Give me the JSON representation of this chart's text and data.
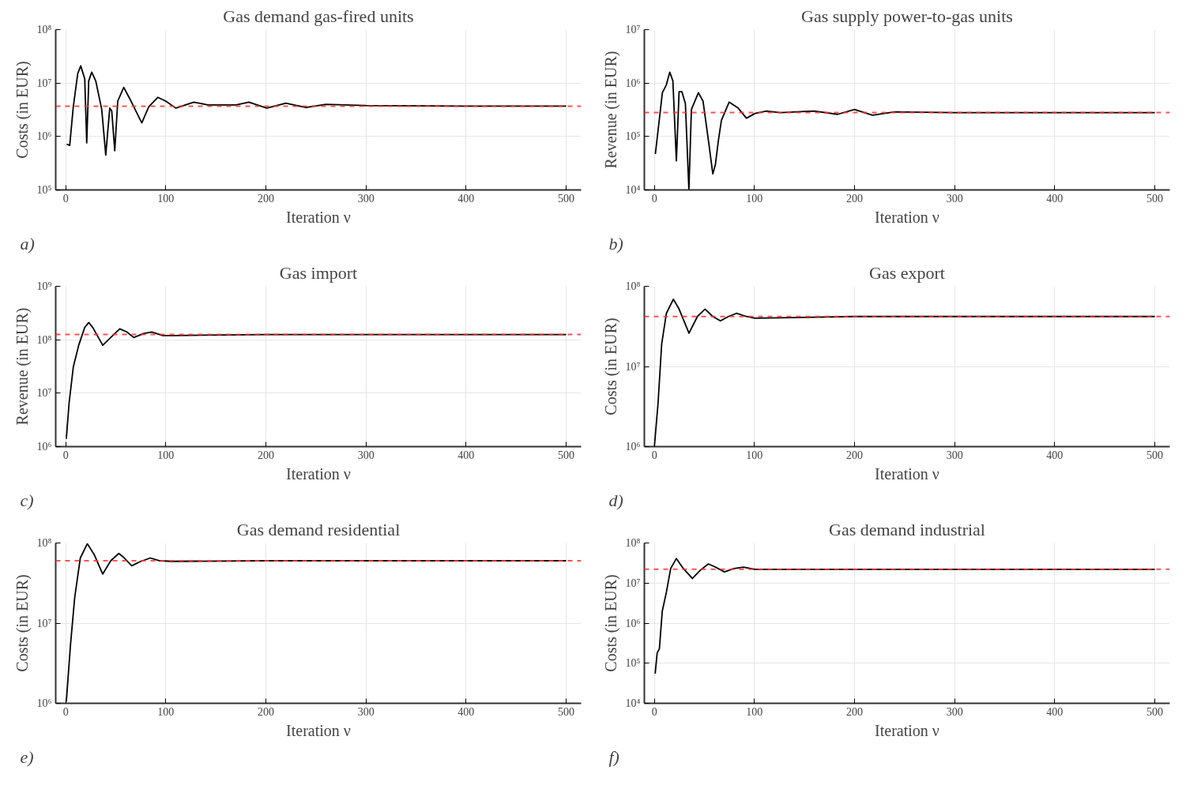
{
  "chart_data": [
    {
      "type": "line",
      "title": "Gas demand gas-fired units",
      "xlabel": "Iteration ν",
      "ylabel": "Costs (in EUR)",
      "annotations": [
        "a)"
      ],
      "log": "y",
      "grid": true,
      "marker": "none",
      "line_style": "solid",
      "color": "#000000",
      "x": [
        1,
        4,
        7.5,
        12,
        15,
        19,
        21,
        23,
        26,
        30,
        36,
        40,
        44,
        46,
        49,
        52,
        58,
        64,
        76,
        83,
        92,
        100,
        110,
        128,
        142,
        170,
        183,
        201,
        220,
        240,
        260,
        300,
        400,
        500
      ],
      "values": [
        720000.0,
        680000.0,
        3500000.0,
        15000000.0,
        21000000.0,
        12000000.0,
        760000.0,
        11000000.0,
        16000000.0,
        11000000.0,
        3200000.0,
        450000.0,
        3400000.0,
        3000000.0,
        540000.0,
        4600000.0,
        8300000.0,
        5100000.0,
        1800000.0,
        3600000.0,
        5400000.0,
        4600000.0,
        3400000.0,
        4400000.0,
        3900000.0,
        3900000.0,
        4400000.0,
        3400000.0,
        4200000.0,
        3500000.0,
        4000000.0,
        3800000.0,
        3700000.0,
        3700000.0
      ],
      "xlim": [
        -10,
        515
      ],
      "ylim": [
        100000.0,
        100000000.0
      ],
      "xticks": [
        0,
        100,
        200,
        300,
        400,
        500
      ],
      "yticks": [
        {
          "value": 100000.0,
          "label": "10⁵"
        },
        {
          "value": 1000000.0,
          "label": "10⁶"
        },
        {
          "value": 10000000.0,
          "label": "10⁷"
        },
        {
          "value": 100000000.0,
          "label": "10⁸"
        }
      ],
      "ref_lines": [
        {
          "axis": "y",
          "value": 3700000.0,
          "color": "#ff3333",
          "line_style": "dashed"
        }
      ]
    },
    {
      "type": "line",
      "title": "Gas supply power-to-gas units",
      "xlabel": "Iteration ν",
      "ylabel": "Revenue (in EUR)",
      "annotations": [
        "b)"
      ],
      "log": "y",
      "grid": true,
      "marker": "none",
      "line_style": "solid",
      "color": "#000000",
      "x": [
        1,
        8,
        12,
        15.4,
        18.5,
        22,
        24.7,
        27.5,
        31,
        34.5,
        37,
        44,
        48.6,
        54,
        58.4,
        61,
        64,
        67,
        74.7,
        83.7,
        92,
        100.6,
        112,
        126,
        160,
        183,
        200,
        218,
        240,
        300,
        400,
        500
      ],
      "values": [
        47000.0,
        660000.0,
        930000.0,
        1600000.0,
        1100000.0,
        35000.0,
        690000.0,
        690000.0,
        410000.0,
        10000.0,
        320000.0,
        660000.0,
        460000.0,
        85000.0,
        20000.0,
        30000.0,
        85000.0,
        200000.0,
        440000.0,
        340000.0,
        220000.0,
        270000.0,
        300000.0,
        280000.0,
        300000.0,
        260000.0,
        320000.0,
        250000.0,
        290000.0,
        280000.0,
        280000.0,
        280000.0
      ],
      "xlim": [
        -10,
        515
      ],
      "ylim": [
        10000.0,
        10000000.0
      ],
      "xticks": [
        0,
        100,
        200,
        300,
        400,
        500
      ],
      "yticks": [
        {
          "value": 10000.0,
          "label": "10⁴"
        },
        {
          "value": 100000.0,
          "label": "10⁵"
        },
        {
          "value": 1000000.0,
          "label": "10⁶"
        },
        {
          "value": 10000000.0,
          "label": "10⁷"
        }
      ],
      "ref_lines": [
        {
          "axis": "y",
          "value": 280000.0,
          "color": "#ff3333",
          "line_style": "dashed"
        }
      ]
    },
    {
      "type": "line",
      "title": "Gas import",
      "xlabel": "Iteration ν",
      "ylabel": "Revenue (in EUR)",
      "annotations": [
        "c)"
      ],
      "log": "y",
      "grid": true,
      "marker": "none",
      "line_style": "solid",
      "color": "#000000",
      "x": [
        0.6,
        3.4,
        7.6,
        13,
        19,
        23,
        27,
        37,
        47,
        54,
        61,
        68,
        77.6,
        86,
        97,
        108,
        200,
        500
      ],
      "values": [
        1400000.0,
        6600000.0,
        31000000.0,
        79000000.0,
        170000000.0,
        210000000.0,
        170000000.0,
        79000000.0,
        120000000.0,
        160000000.0,
        140000000.0,
        110000000.0,
        130000000.0,
        140000000.0,
        120000000.0,
        120000000.0,
        125000000.0,
        125000000.0
      ],
      "xlim": [
        -10,
        515
      ],
      "ylim": [
        1000000.0,
        1000000000.0
      ],
      "xticks": [
        0,
        100,
        200,
        300,
        400,
        500
      ],
      "yticks": [
        {
          "value": 1000000.0,
          "label": "10⁶"
        },
        {
          "value": 10000000.0,
          "label": "10⁷"
        },
        {
          "value": 100000000.0,
          "label": "10⁸"
        },
        {
          "value": 1000000000.0,
          "label": "10⁹"
        }
      ],
      "ref_lines": [
        {
          "axis": "y",
          "value": 125000000.0,
          "color": "#ff3333",
          "line_style": "dashed"
        }
      ]
    },
    {
      "type": "line",
      "title": "Gas export",
      "xlabel": "Iteration ν",
      "ylabel": "Costs (in EUR)",
      "annotations": [
        "d)"
      ],
      "log": "y",
      "grid": true,
      "marker": "none",
      "line_style": "solid",
      "color": "#000000",
      "x": [
        0,
        3.7,
        7.3,
        12,
        19,
        24.7,
        34.6,
        43,
        50.6,
        58.4,
        66,
        74,
        82,
        92,
        100.6,
        200,
        500
      ],
      "values": [
        1000000.0,
        3500000.0,
        19000000.0,
        46000000.0,
        69000000.0,
        52000000.0,
        26000000.0,
        42000000.0,
        52000000.0,
        42000000.0,
        37000000.0,
        42000000.0,
        46000000.0,
        42000000.0,
        40000000.0,
        42000000.0,
        42000000.0
      ],
      "xlim": [
        -10,
        515
      ],
      "ylim": [
        1000000.0,
        100000000.0
      ],
      "xticks": [
        0,
        100,
        200,
        300,
        400,
        500
      ],
      "yticks": [
        {
          "value": 1000000.0,
          "label": "10⁶"
        },
        {
          "value": 10000000.0,
          "label": "10⁷"
        },
        {
          "value": 100000000.0,
          "label": "10⁸"
        }
      ],
      "ref_lines": [
        {
          "axis": "y",
          "value": 42000000.0,
          "color": "#ff3333",
          "line_style": "dashed"
        }
      ]
    },
    {
      "type": "line",
      "title": "Gas demand residential",
      "xlabel": "Iteration ν",
      "ylabel": "Costs (in EUR)",
      "annotations": [
        "e)"
      ],
      "log": "y",
      "grid": true,
      "marker": "none",
      "line_style": "solid",
      "color": "#000000",
      "x": [
        0.6,
        4.8,
        9,
        14.6,
        21.6,
        28.6,
        37,
        45,
        53,
        58,
        66,
        75,
        84.6,
        94,
        105.6,
        200,
        500
      ],
      "values": [
        1050000.0,
        5400000.0,
        21000000.0,
        65000000.0,
        98000000.0,
        71000000.0,
        41000000.0,
        60000000.0,
        74000000.0,
        66000000.0,
        52000000.0,
        59000000.0,
        65000000.0,
        60000000.0,
        59000000.0,
        60000000.0,
        60000000.0
      ],
      "xlim": [
        -10,
        515
      ],
      "ylim": [
        1000000.0,
        100000000.0
      ],
      "xticks": [
        0,
        100,
        200,
        300,
        400,
        500
      ],
      "yticks": [
        {
          "value": 1000000.0,
          "label": "10⁶"
        },
        {
          "value": 10000000.0,
          "label": "10⁷"
        },
        {
          "value": 100000000.0,
          "label": "10⁸"
        }
      ],
      "ref_lines": [
        {
          "axis": "y",
          "value": 60000000.0,
          "color": "#ff3333",
          "line_style": "dashed"
        }
      ]
    },
    {
      "type": "line",
      "title": "Gas demand industrial",
      "xlabel": "Iteration ν",
      "ylabel": "Costs (in EUR)",
      "annotations": [
        "f)"
      ],
      "log": "y",
      "grid": true,
      "marker": "none",
      "line_style": "solid",
      "color": "#000000",
      "x": [
        0.8,
        2.8,
        5,
        7.9,
        12,
        16.3,
        22,
        29,
        38,
        46,
        54,
        61,
        70,
        79.5,
        89,
        100.6,
        200,
        500
      ],
      "values": [
        55000.0,
        180000.0,
        230000.0,
        2000000.0,
        5900000.0,
        23000000.0,
        41000000.0,
        23000000.0,
        13000000.0,
        21000000.0,
        30000000.0,
        25000000.0,
        19000000.0,
        23000000.0,
        25000000.0,
        22000000.0,
        22000000.0,
        22000000.0
      ],
      "xlim": [
        -10,
        515
      ],
      "ylim": [
        10000.0,
        100000000.0
      ],
      "xticks": [
        0,
        100,
        200,
        300,
        400,
        500
      ],
      "yticks": [
        {
          "value": 10000.0,
          "label": "10⁴"
        },
        {
          "value": 100000.0,
          "label": "10⁵"
        },
        {
          "value": 1000000.0,
          "label": "10⁶"
        },
        {
          "value": 10000000.0,
          "label": "10⁷"
        },
        {
          "value": 100000000.0,
          "label": "10⁸"
        }
      ],
      "ref_lines": [
        {
          "axis": "y",
          "value": 22000000.0,
          "color": "#ff3333",
          "line_style": "dashed"
        }
      ]
    }
  ]
}
